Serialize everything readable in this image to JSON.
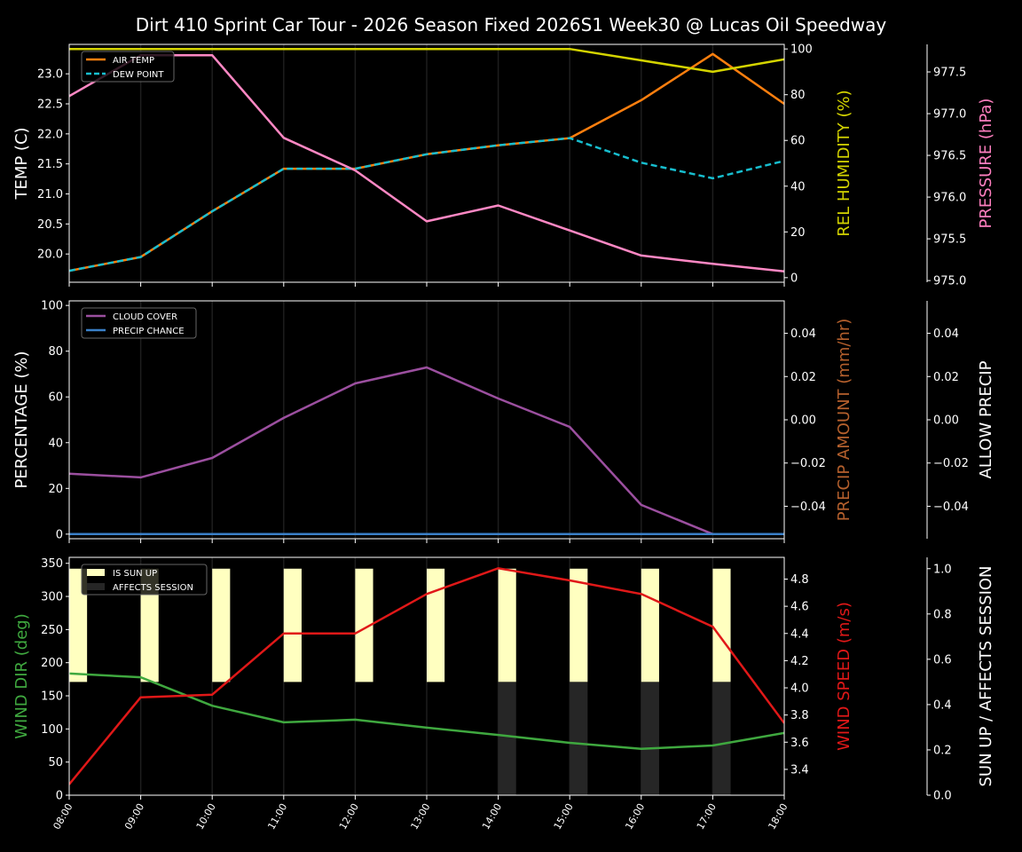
{
  "chart_data": {
    "type": "line",
    "title": "Dirt 410 Sprint Car Tour - 2026 Season Fixed 2026S1 Week30 @ Lucas Oil Speedway",
    "x": [
      "08:00",
      "09:00",
      "10:00",
      "11:00",
      "12:00",
      "13:00",
      "14:00",
      "15:00",
      "16:00",
      "17:00",
      "18:00"
    ],
    "grid": "vertical",
    "subplots": [
      {
        "legend": "top-left",
        "axes": {
          "left": {
            "label": "TEMP (C)",
            "color": "#ffffff",
            "ylim": [
              19.53,
              23.49
            ],
            "ticks": [
              20.0,
              20.5,
              21.0,
              21.5,
              22.0,
              22.5,
              23.0
            ],
            "tick_labels": [
              "20.0",
              "20.5",
              "21.0",
              "21.5",
              "22.0",
              "22.5",
              "23.0"
            ]
          },
          "right": {
            "label": "REL HUMIDITY (%)",
            "color": "#d4d400",
            "ylim": [
              -2,
              102
            ],
            "ticks": [
              0,
              20,
              40,
              60,
              80,
              100
            ],
            "tick_labels": [
              "0",
              "20",
              "40",
              "60",
              "80",
              "100"
            ]
          },
          "far": {
            "label": "PRESSURE (hPa)",
            "color": "#ff7fbf",
            "ylim": [
              974.98,
              977.83
            ],
            "ticks": [
              975.0,
              975.5,
              976.0,
              976.5,
              977.0,
              977.5
            ],
            "tick_labels": [
              "975.0",
              "975.5",
              "976.0",
              "976.5",
              "977.0",
              "977.5"
            ]
          }
        },
        "series": [
          {
            "name": "AIR TEMP",
            "axis": "left",
            "kind": "line",
            "color": "#ff7f0e",
            "dash": false,
            "legend": true,
            "values": [
              19.72,
              19.95,
              20.71,
              21.42,
              21.42,
              21.66,
              21.81,
              21.93,
              22.56,
              23.33,
              22.5
            ]
          },
          {
            "name": "DEW POINT",
            "axis": "left",
            "kind": "line",
            "color": "#17becf",
            "dash": true,
            "legend": true,
            "values": [
              19.72,
              19.95,
              20.71,
              21.42,
              21.42,
              21.66,
              21.81,
              21.93,
              21.52,
              21.26,
              21.55
            ]
          },
          {
            "axis": "right",
            "kind": "line",
            "color": "#d4d400",
            "dash": false,
            "legend": false,
            "values": [
              100,
              100,
              100,
              100,
              100,
              100,
              100,
              100,
              95,
              90,
              95.5
            ]
          },
          {
            "axis": "far",
            "kind": "line",
            "color": "#ff88c4",
            "dash": false,
            "legend": false,
            "values": [
              977.21,
              977.7,
              977.7,
              976.71,
              976.32,
              975.71,
              975.9,
              975.6,
              975.3,
              975.2,
              975.11
            ]
          }
        ]
      },
      {
        "legend": "top-left",
        "axes": {
          "left": {
            "label": "PERCENTAGE (%)",
            "color": "#ffffff",
            "ylim": [
              -2,
              102
            ],
            "ticks": [
              0,
              20,
              40,
              60,
              80,
              100
            ],
            "tick_labels": [
              "0",
              "20",
              "40",
              "60",
              "80",
              "100"
            ]
          },
          "right": {
            "label": "PRECIP AMOUNT (mm/hr)",
            "color": "#b5602d",
            "ylim": [
              -0.055,
              0.055
            ],
            "ticks": [
              -0.04,
              -0.02,
              0,
              0.02,
              0.04
            ],
            "tick_labels": [
              "−0.04",
              "−0.02",
              "0.00",
              "0.02",
              "0.04"
            ]
          },
          "far": {
            "label": "ALLOW PRECIP",
            "color": "#ffffff",
            "ylim": [
              -0.055,
              0.055
            ],
            "ticks": [
              -0.04,
              -0.02,
              0,
              0.02,
              0.04
            ],
            "tick_labels": [
              "−0.04",
              "−0.02",
              "0.00",
              "0.02",
              "0.04"
            ]
          }
        },
        "series": [
          {
            "name": "CLOUD COVER",
            "axis": "left",
            "kind": "line",
            "color": "#9b4f9f",
            "dash": false,
            "legend": true,
            "values": [
              26.4,
              24.8,
              33.3,
              50.8,
              65.9,
              72.9,
              59.3,
              46.9,
              12.8,
              0,
              0
            ]
          },
          {
            "name": "PRECIP CHANCE",
            "axis": "left",
            "kind": "line",
            "color": "#3a80c8",
            "dash": false,
            "legend": true,
            "values": [
              0,
              0,
              0,
              0,
              0,
              0,
              0,
              0,
              0,
              0,
              0
            ]
          }
        ]
      },
      {
        "legend": "top-left",
        "axes": {
          "left": {
            "label": "WIND DIR (deg)",
            "color": "#3fa83f",
            "ylim": [
              0,
              359
            ],
            "ticks": [
              0,
              50,
              100,
              150,
              200,
              250,
              300,
              350
            ],
            "tick_labels": [
              "0",
              "50",
              "100",
              "150",
              "200",
              "250",
              "300",
              "350"
            ]
          },
          "right": {
            "label": "WIND SPEED (m/s)",
            "color": "#e01818",
            "ylim": [
              3.21,
              4.96
            ],
            "ticks": [
              3.4,
              3.6,
              3.8,
              4.0,
              4.2,
              4.4,
              4.6,
              4.8
            ],
            "tick_labels": [
              "3.4",
              "3.6",
              "3.8",
              "4.0",
              "4.2",
              "4.4",
              "4.6",
              "4.8"
            ]
          },
          "far": {
            "label": "SUN UP / AFFECTS SESSION",
            "color": "#ffffff",
            "ylim": [
              0,
              1.05
            ],
            "ticks": [
              0,
              0.2,
              0.4,
              0.6,
              0.8,
              1.0
            ],
            "tick_labels": [
              "0.0",
              "0.2",
              "0.4",
              "0.6",
              "0.8",
              "1.0"
            ]
          }
        },
        "series": [
          {
            "name": "IS SUN UP",
            "axis": "far",
            "kind": "bar",
            "color": "#ffffc0",
            "legend": true,
            "bottom": 0.5,
            "values": [
              0.5,
              0.5,
              0.5,
              0.5,
              0.5,
              0.5,
              0.5,
              0.5,
              0.5,
              0.5,
              0.5
            ]
          },
          {
            "name": "AFFECTS SESSION",
            "axis": "far",
            "kind": "bar",
            "color": "#262626",
            "legend": true,
            "bottom": 0,
            "values": [
              0,
              0,
              0,
              0,
              0,
              0,
              0.5,
              0.5,
              0.5,
              0.5,
              0
            ]
          },
          {
            "axis": "left",
            "kind": "line",
            "color": "#3fa83f",
            "dash": false,
            "legend": false,
            "values": [
              183.6,
              178,
              135,
              110,
              114,
              102,
              91,
              79,
              70,
              75,
              94
            ]
          },
          {
            "axis": "right",
            "kind": "line",
            "color": "#e01818",
            "dash": false,
            "legend": false,
            "values": [
              3.29,
              3.93,
              3.95,
              4.4,
              4.4,
              4.69,
              4.88,
              4.79,
              4.69,
              4.45,
              3.74
            ]
          }
        ]
      }
    ]
  }
}
